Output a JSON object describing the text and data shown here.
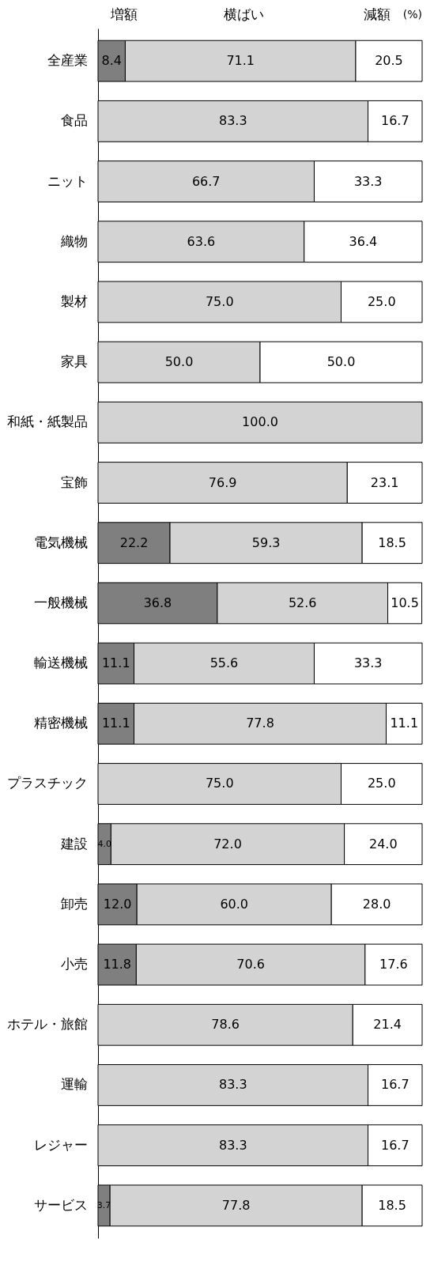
{
  "chart_data": {
    "type": "bar",
    "orientation": "horizontal",
    "stacked": true,
    "legend": "top",
    "tick_labels": "y",
    "xlim": [
      0,
      100
    ],
    "categories": [
      "全産業",
      "食品",
      "ニット",
      "織物",
      "製材",
      "家具",
      "和紙・紙製品",
      "宝飾",
      "電気機械",
      "一般機械",
      "輸送機械",
      "精密機械",
      "プラスチック",
      "建設",
      "卸売",
      "小売",
      "ホテル・旅館",
      "運輸",
      "レジャー",
      "サービス"
    ],
    "series": [
      {
        "name": "増額",
        "color": "#7f7f7f",
        "values": [
          8.4,
          null,
          null,
          null,
          null,
          null,
          null,
          null,
          22.2,
          36.8,
          11.1,
          11.1,
          null,
          4.0,
          12.0,
          11.8,
          null,
          null,
          null,
          3.7
        ],
        "value_labels": [
          "8.4",
          null,
          null,
          null,
          null,
          null,
          null,
          null,
          "22.2",
          "36.8",
          "11.1",
          "11.1",
          null,
          "4.0",
          "12.0",
          "11.8",
          null,
          null,
          null,
          "3.7"
        ]
      },
      {
        "name": "横ばい",
        "color": "#d3d3d3",
        "values": [
          71.1,
          83.3,
          66.7,
          63.6,
          75.0,
          50.0,
          100.0,
          76.9,
          59.3,
          52.6,
          55.6,
          77.8,
          75.0,
          72.0,
          60.0,
          70.6,
          78.6,
          83.3,
          83.3,
          77.8
        ],
        "value_labels": [
          "71.1",
          "83.3",
          "66.7",
          "63.6",
          "75.0",
          "50.0",
          "100.0",
          "76.9",
          "59.3",
          "52.6",
          "55.6",
          "77.8",
          "75.0",
          "72.0",
          "60.0",
          "70.6",
          "78.6",
          "83.3",
          "83.3",
          "77.8"
        ]
      },
      {
        "name": "減額",
        "color": "#ffffff",
        "values": [
          20.5,
          16.7,
          33.3,
          36.4,
          25.0,
          50.0,
          null,
          23.1,
          18.5,
          10.5,
          33.3,
          11.1,
          25.0,
          24.0,
          28.0,
          17.6,
          21.4,
          16.7,
          16.7,
          18.5
        ],
        "value_labels": [
          "20.5",
          "16.7",
          "33.3",
          "36.4",
          "25.0",
          "50.0",
          null,
          "23.1",
          "18.5",
          "10.5",
          "33.3",
          "11.1",
          "25.0",
          "24.0",
          "28.0",
          "17.6",
          "21.4",
          "16.7",
          "16.7",
          "18.5"
        ]
      }
    ],
    "annotations": [
      "(%)"
    ]
  }
}
